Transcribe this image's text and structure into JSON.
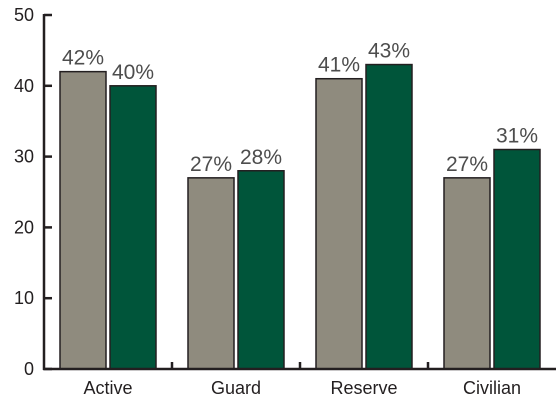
{
  "chart_data": {
    "type": "bar",
    "categories": [
      "Active",
      "Guard",
      "Reserve",
      "Civilian"
    ],
    "series": [
      {
        "values": [
          42,
          27,
          41,
          27
        ],
        "labels": [
          "42%",
          "27%",
          "41%",
          "27%"
        ],
        "color": "#8f8b7e"
      },
      {
        "values": [
          40,
          28,
          43,
          31
        ],
        "labels": [
          "40%",
          "28%",
          "43%",
          "31%"
        ],
        "color": "#00553a"
      }
    ],
    "yticks": [
      "0",
      "10",
      "20",
      "30",
      "40",
      "50"
    ],
    "ylim": [
      0,
      50
    ],
    "grid": false,
    "xlabel": "",
    "ylabel": "",
    "title": ""
  }
}
